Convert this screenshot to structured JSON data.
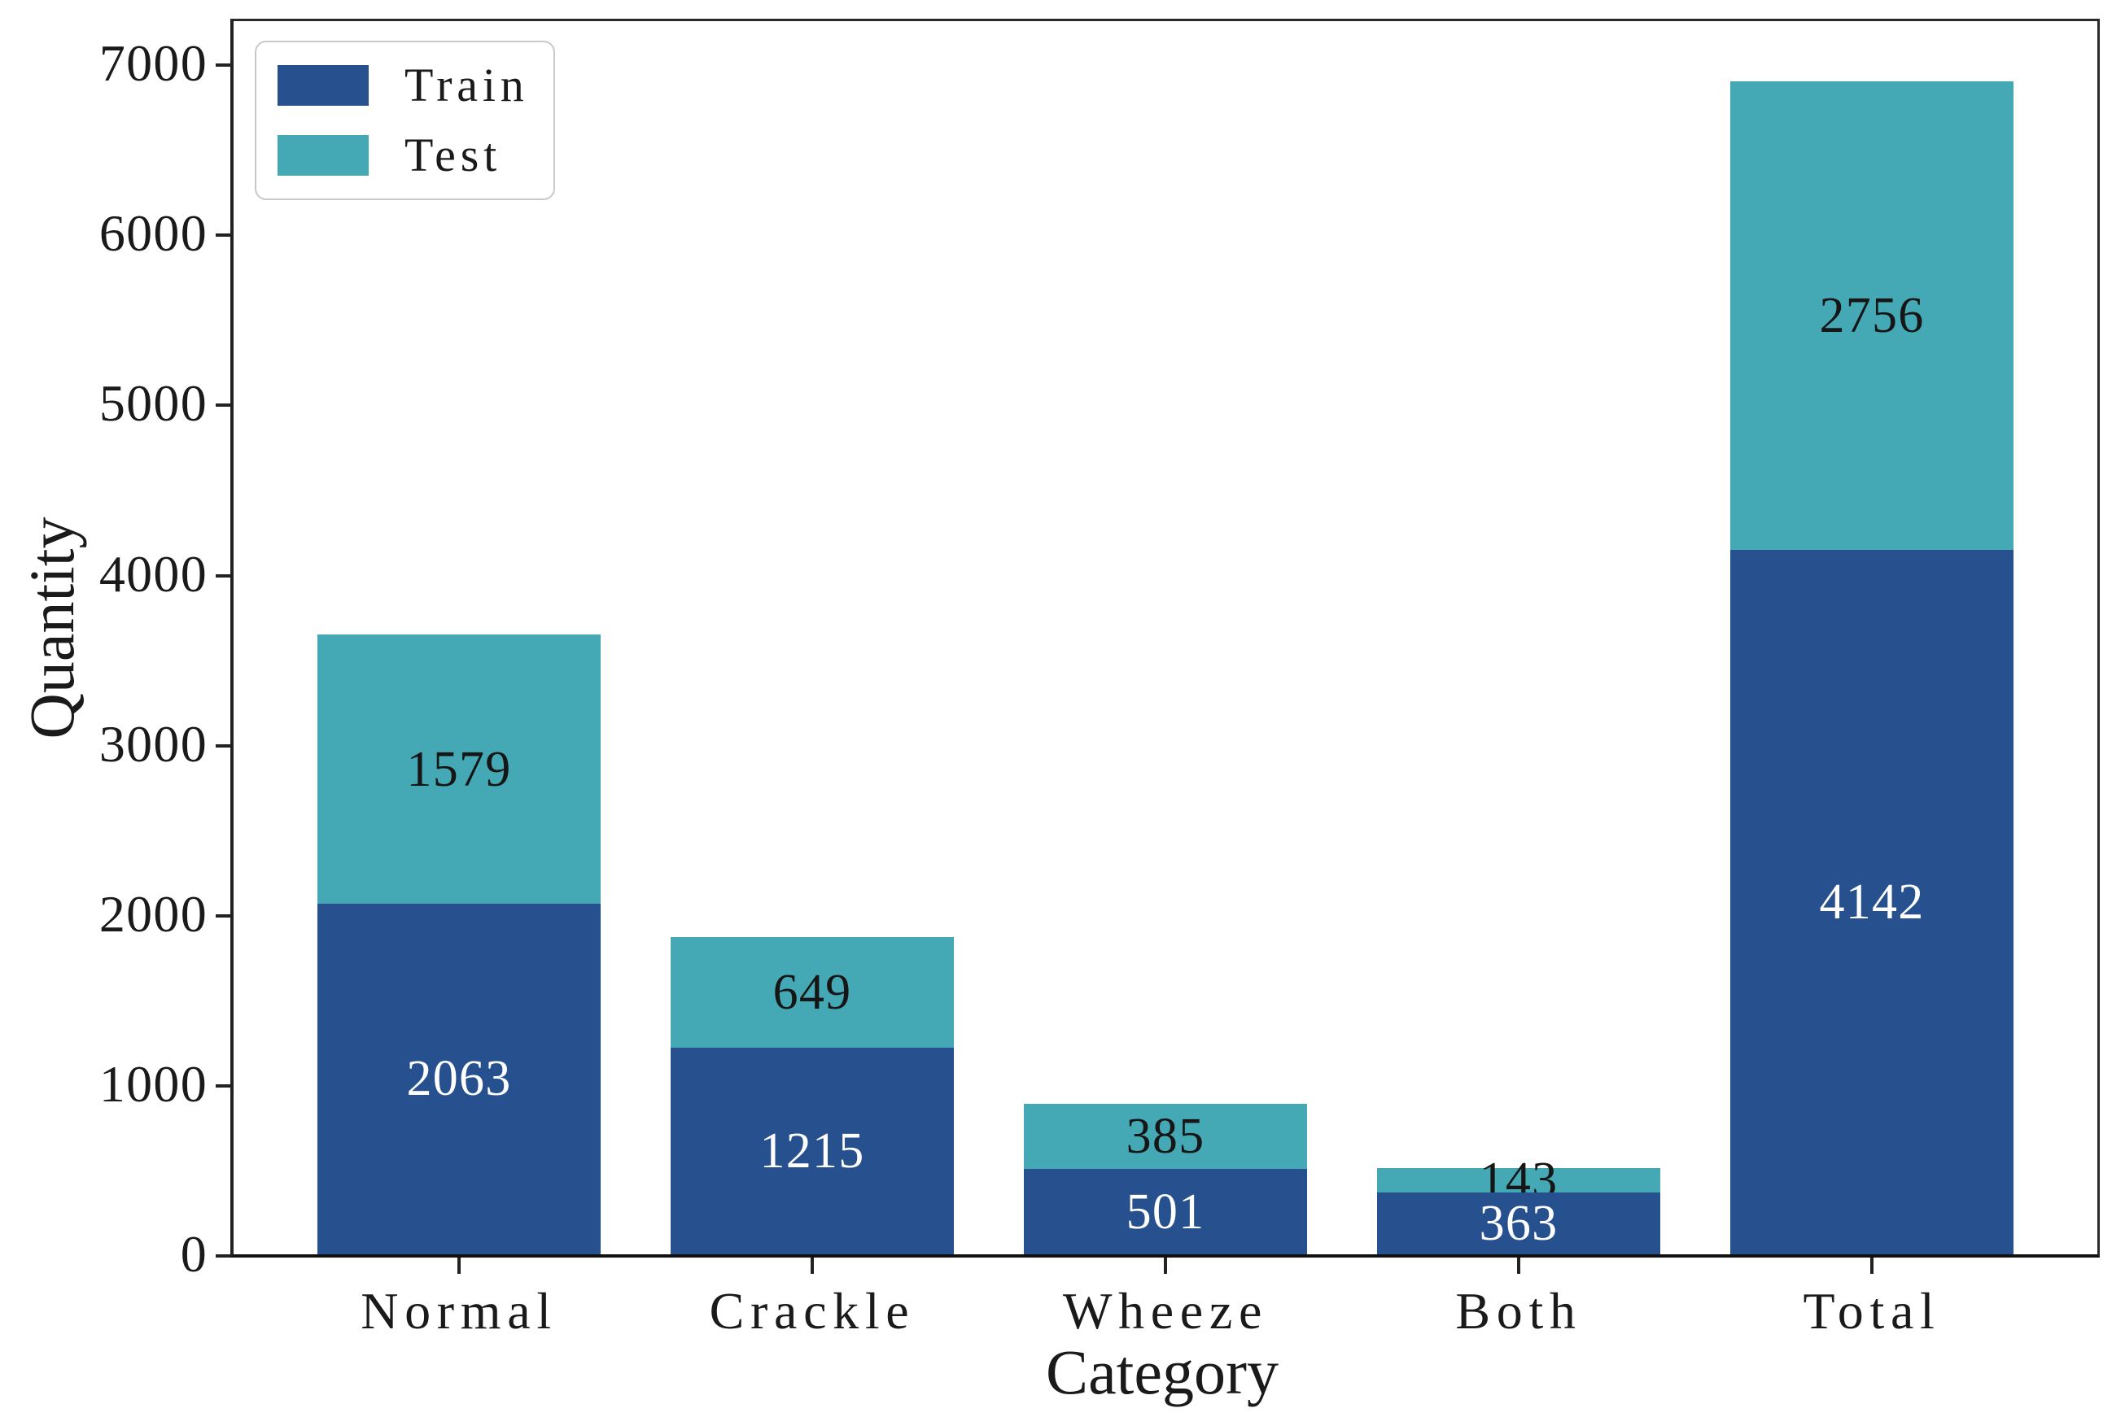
{
  "chart_data": {
    "type": "bar",
    "stacked": true,
    "title": "",
    "xlabel": "Category",
    "ylabel": "Quantity",
    "categories": [
      "Normal",
      "Crackle",
      "Wheeze",
      "Both",
      "Total"
    ],
    "series": [
      {
        "name": "Train",
        "color": "#26508E",
        "label_color": "#ffffff",
        "values": [
          2063,
          1215,
          501,
          363,
          4142
        ]
      },
      {
        "name": "Test",
        "color": "#44A9B5",
        "label_color": "#161616",
        "values": [
          1579,
          649,
          385,
          143,
          2756
        ]
      }
    ],
    "stack_totals": [
      3642,
      1864,
      886,
      506,
      6898
    ],
    "ylim": [
      0,
      7250
    ],
    "yticks": [
      0,
      1000,
      2000,
      3000,
      4000,
      5000,
      6000,
      7000
    ],
    "grid": false,
    "legend_position": "upper-left",
    "axis_color": "#222222"
  }
}
